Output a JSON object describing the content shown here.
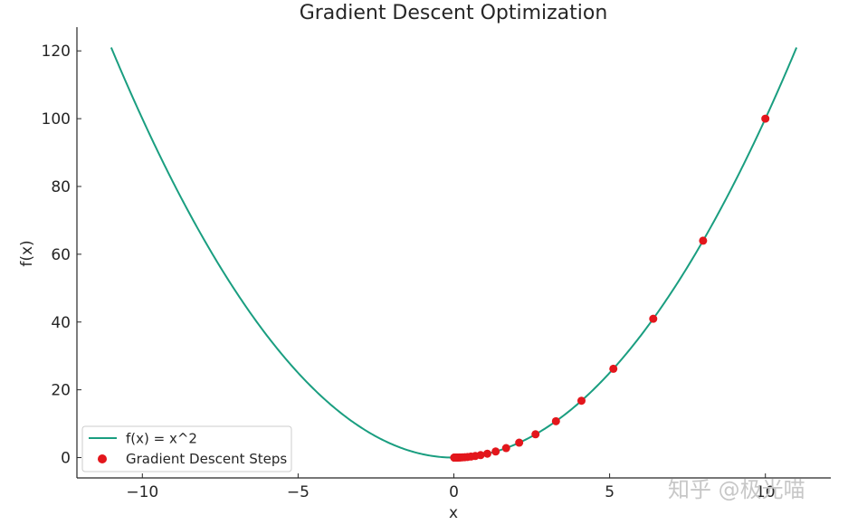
{
  "chart_data": {
    "type": "line",
    "title": "Gradient Descent Optimization",
    "xlabel": "x",
    "ylabel": "f(x)",
    "xlim": [
      -12.1,
      12.1
    ],
    "ylim": [
      -6,
      127
    ],
    "xticks": [
      -10,
      -5,
      0,
      5,
      10
    ],
    "xtick_labels": [
      "−10",
      "−5",
      "0",
      "5",
      "10"
    ],
    "yticks": [
      0,
      20,
      40,
      60,
      80,
      100,
      120
    ],
    "ytick_labels": [
      "0",
      "20",
      "40",
      "60",
      "80",
      "100",
      "120"
    ],
    "grid": false,
    "legend_position": "lower-left",
    "series": [
      {
        "name": "f(x) = x^2",
        "kind": "line",
        "color": "#1a9e80",
        "function": "x^2",
        "x_range": [
          -11,
          11
        ]
      },
      {
        "name": "Gradient Descent Steps",
        "kind": "scatter",
        "color": "#e3161c",
        "x": [
          10,
          8,
          6.4,
          5.12,
          4.096,
          3.277,
          2.621,
          2.097,
          1.678,
          1.342,
          1.074,
          0.859,
          0.687,
          0.55,
          0.44,
          0.352,
          0.281,
          0.225,
          0.18,
          0.144,
          0.115,
          0.092,
          0.074,
          0.059,
          0.047,
          0.038,
          0.03,
          0.024,
          0.019,
          0.015,
          0.012
        ],
        "y": [
          100,
          64,
          40.96,
          26.21,
          16.78,
          10.74,
          6.87,
          4.4,
          2.81,
          1.8,
          1.15,
          0.74,
          0.47,
          0.3,
          0.19,
          0.12,
          0.08,
          0.05,
          0.03,
          0.02,
          0.01,
          0.01,
          0.01,
          0,
          0,
          0,
          0,
          0,
          0,
          0,
          0
        ]
      }
    ]
  },
  "watermark": {
    "text": "知乎 @极光喵"
  }
}
